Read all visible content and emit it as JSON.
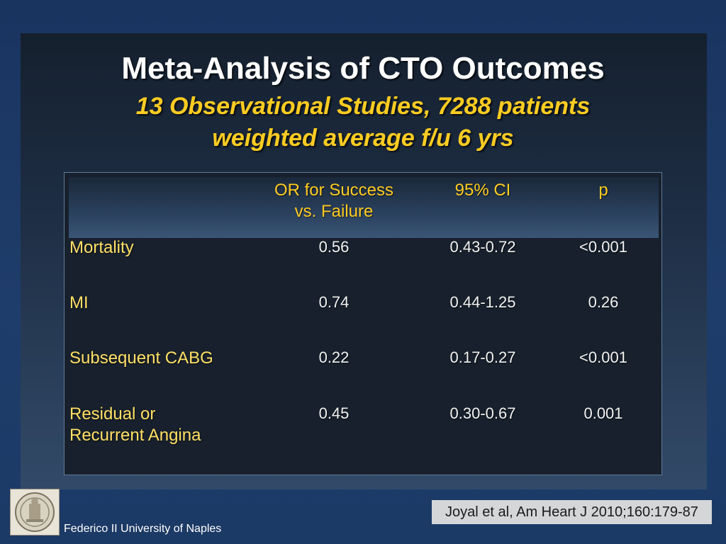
{
  "slide": {
    "title": "Meta-Analysis of CTO Outcomes",
    "subtitle_line1": "13 Observational Studies, 7288 patients",
    "subtitle_line2": "weighted average f/u 6 yrs"
  },
  "table": {
    "headers": {
      "col1": "OR for Success\nvs. Failure",
      "col2": "95% CI",
      "col3": "p"
    },
    "rows": [
      {
        "label": "Mortality",
        "or": "0.56",
        "ci": "0.43-0.72",
        "p": "<0.001"
      },
      {
        "label": "MI",
        "or": "0.74",
        "ci": "0.44-1.25",
        "p": "0.26"
      },
      {
        "label": "Subsequent CABG",
        "or": "0.22",
        "ci": "0.17-0.27",
        "p": "<0.001"
      },
      {
        "label": "Residual or\nRecurrent Angina",
        "or": "0.45",
        "ci": "0.30-0.67",
        "p": "0.001"
      }
    ]
  },
  "footer": {
    "citation": "Joyal et al, Am Heart J 2010;160:179-87",
    "university": "Federico II University of Naples",
    "logo_icon": "university-seal-icon"
  },
  "colors": {
    "title": "#ffffff",
    "subtitle": "#ffcc22",
    "row_label": "#ffe066",
    "cell_text": "#f2f2f2"
  }
}
